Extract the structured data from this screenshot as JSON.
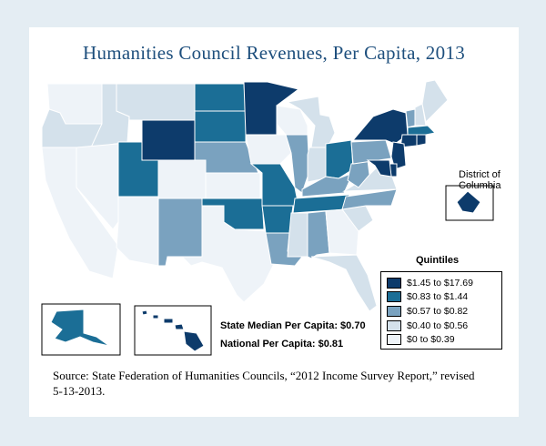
{
  "title": "Humanities Council Revenues, Per Capita, 2013",
  "stats": {
    "median": "State Median Per Capita: $0.70",
    "national": "National Per Capita: $0.81"
  },
  "dc_label": "District of Columbia",
  "legend": {
    "title": "Quintiles",
    "items": [
      {
        "label": "$1.45 to $17.69",
        "color": "#0d3b6b"
      },
      {
        "label": "$0.83 to $1.44",
        "color": "#1b6e96"
      },
      {
        "label": "$0.57 to $0.82",
        "color": "#7aa2bf"
      },
      {
        "label": "$0.40 to $0.56",
        "color": "#d4e1eb"
      },
      {
        "label": "$0 to $0.39",
        "color": "#eef3f8"
      }
    ]
  },
  "source": "Source: State Federation of Humanities Councils, “2012 Income Survey Report,” revised 5-13-2013.",
  "states": {
    "WA": 5,
    "OR": 4,
    "CA": 5,
    "ID": 4,
    "NV": 5,
    "MT": 4,
    "WY": 1,
    "UT": 2,
    "AZ": 5,
    "CO": 5,
    "NM": 3,
    "ND": 2,
    "SD": 2,
    "NE": 3,
    "KS": 5,
    "OK": 2,
    "TX": 5,
    "MN": 1,
    "IA": 5,
    "MO": 2,
    "AR": 2,
    "LA": 3,
    "WI": 5,
    "IL": 3,
    "MI": 4,
    "IN": 4,
    "OH": 2,
    "KY": 3,
    "TN": 2,
    "MS": 4,
    "AL": 3,
    "GA": 5,
    "FL": 4,
    "SC": 4,
    "NC": 3,
    "VA": 4,
    "WV": 3,
    "PA": 3,
    "NY": 1,
    "VT": 3,
    "NH": 4,
    "ME": 4,
    "MA": 2,
    "CT": 1,
    "RI": 1,
    "NJ": 1,
    "DE": 1,
    "MD": 1,
    "AK": 2,
    "HI": 1,
    "DC": 1
  }
}
